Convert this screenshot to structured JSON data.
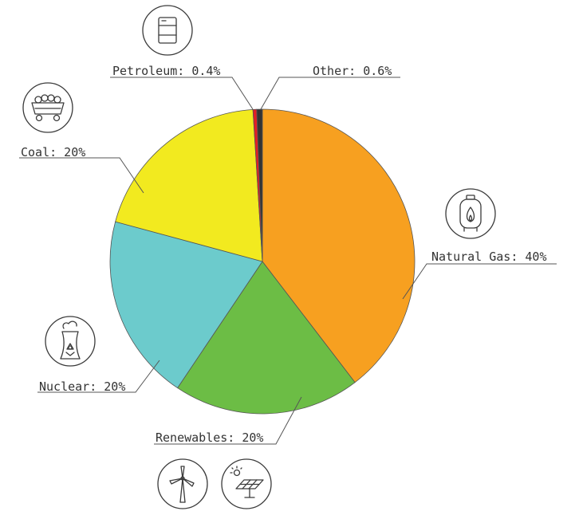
{
  "chart_data": {
    "type": "pie",
    "start": "12 o'clock",
    "direction": "clockwise",
    "slices": [
      {
        "label": "Natural Gas: 40%",
        "value": 40,
        "color": "#f7a020",
        "icon": "gas-cylinder-icon"
      },
      {
        "label": "Renewables: 20%",
        "value": 20,
        "color": "#6cbd45",
        "icon": "wind-turbine-and-solar-panel-icons"
      },
      {
        "label": "Nuclear: 20%",
        "value": 20,
        "color": "#6ccbcc",
        "icon": "nuclear-plant-icon"
      },
      {
        "label": "Coal: 20%",
        "value": 20,
        "color": "#f2ea1f",
        "icon": "coal-cart-icon"
      },
      {
        "label": "Petroleum: 0.4%",
        "value": 0.4,
        "color": "#e31e24",
        "icon": "oil-barrel-icon"
      },
      {
        "label": "Other: 0.6%",
        "value": 0.6,
        "color": "#333333"
      }
    ]
  }
}
